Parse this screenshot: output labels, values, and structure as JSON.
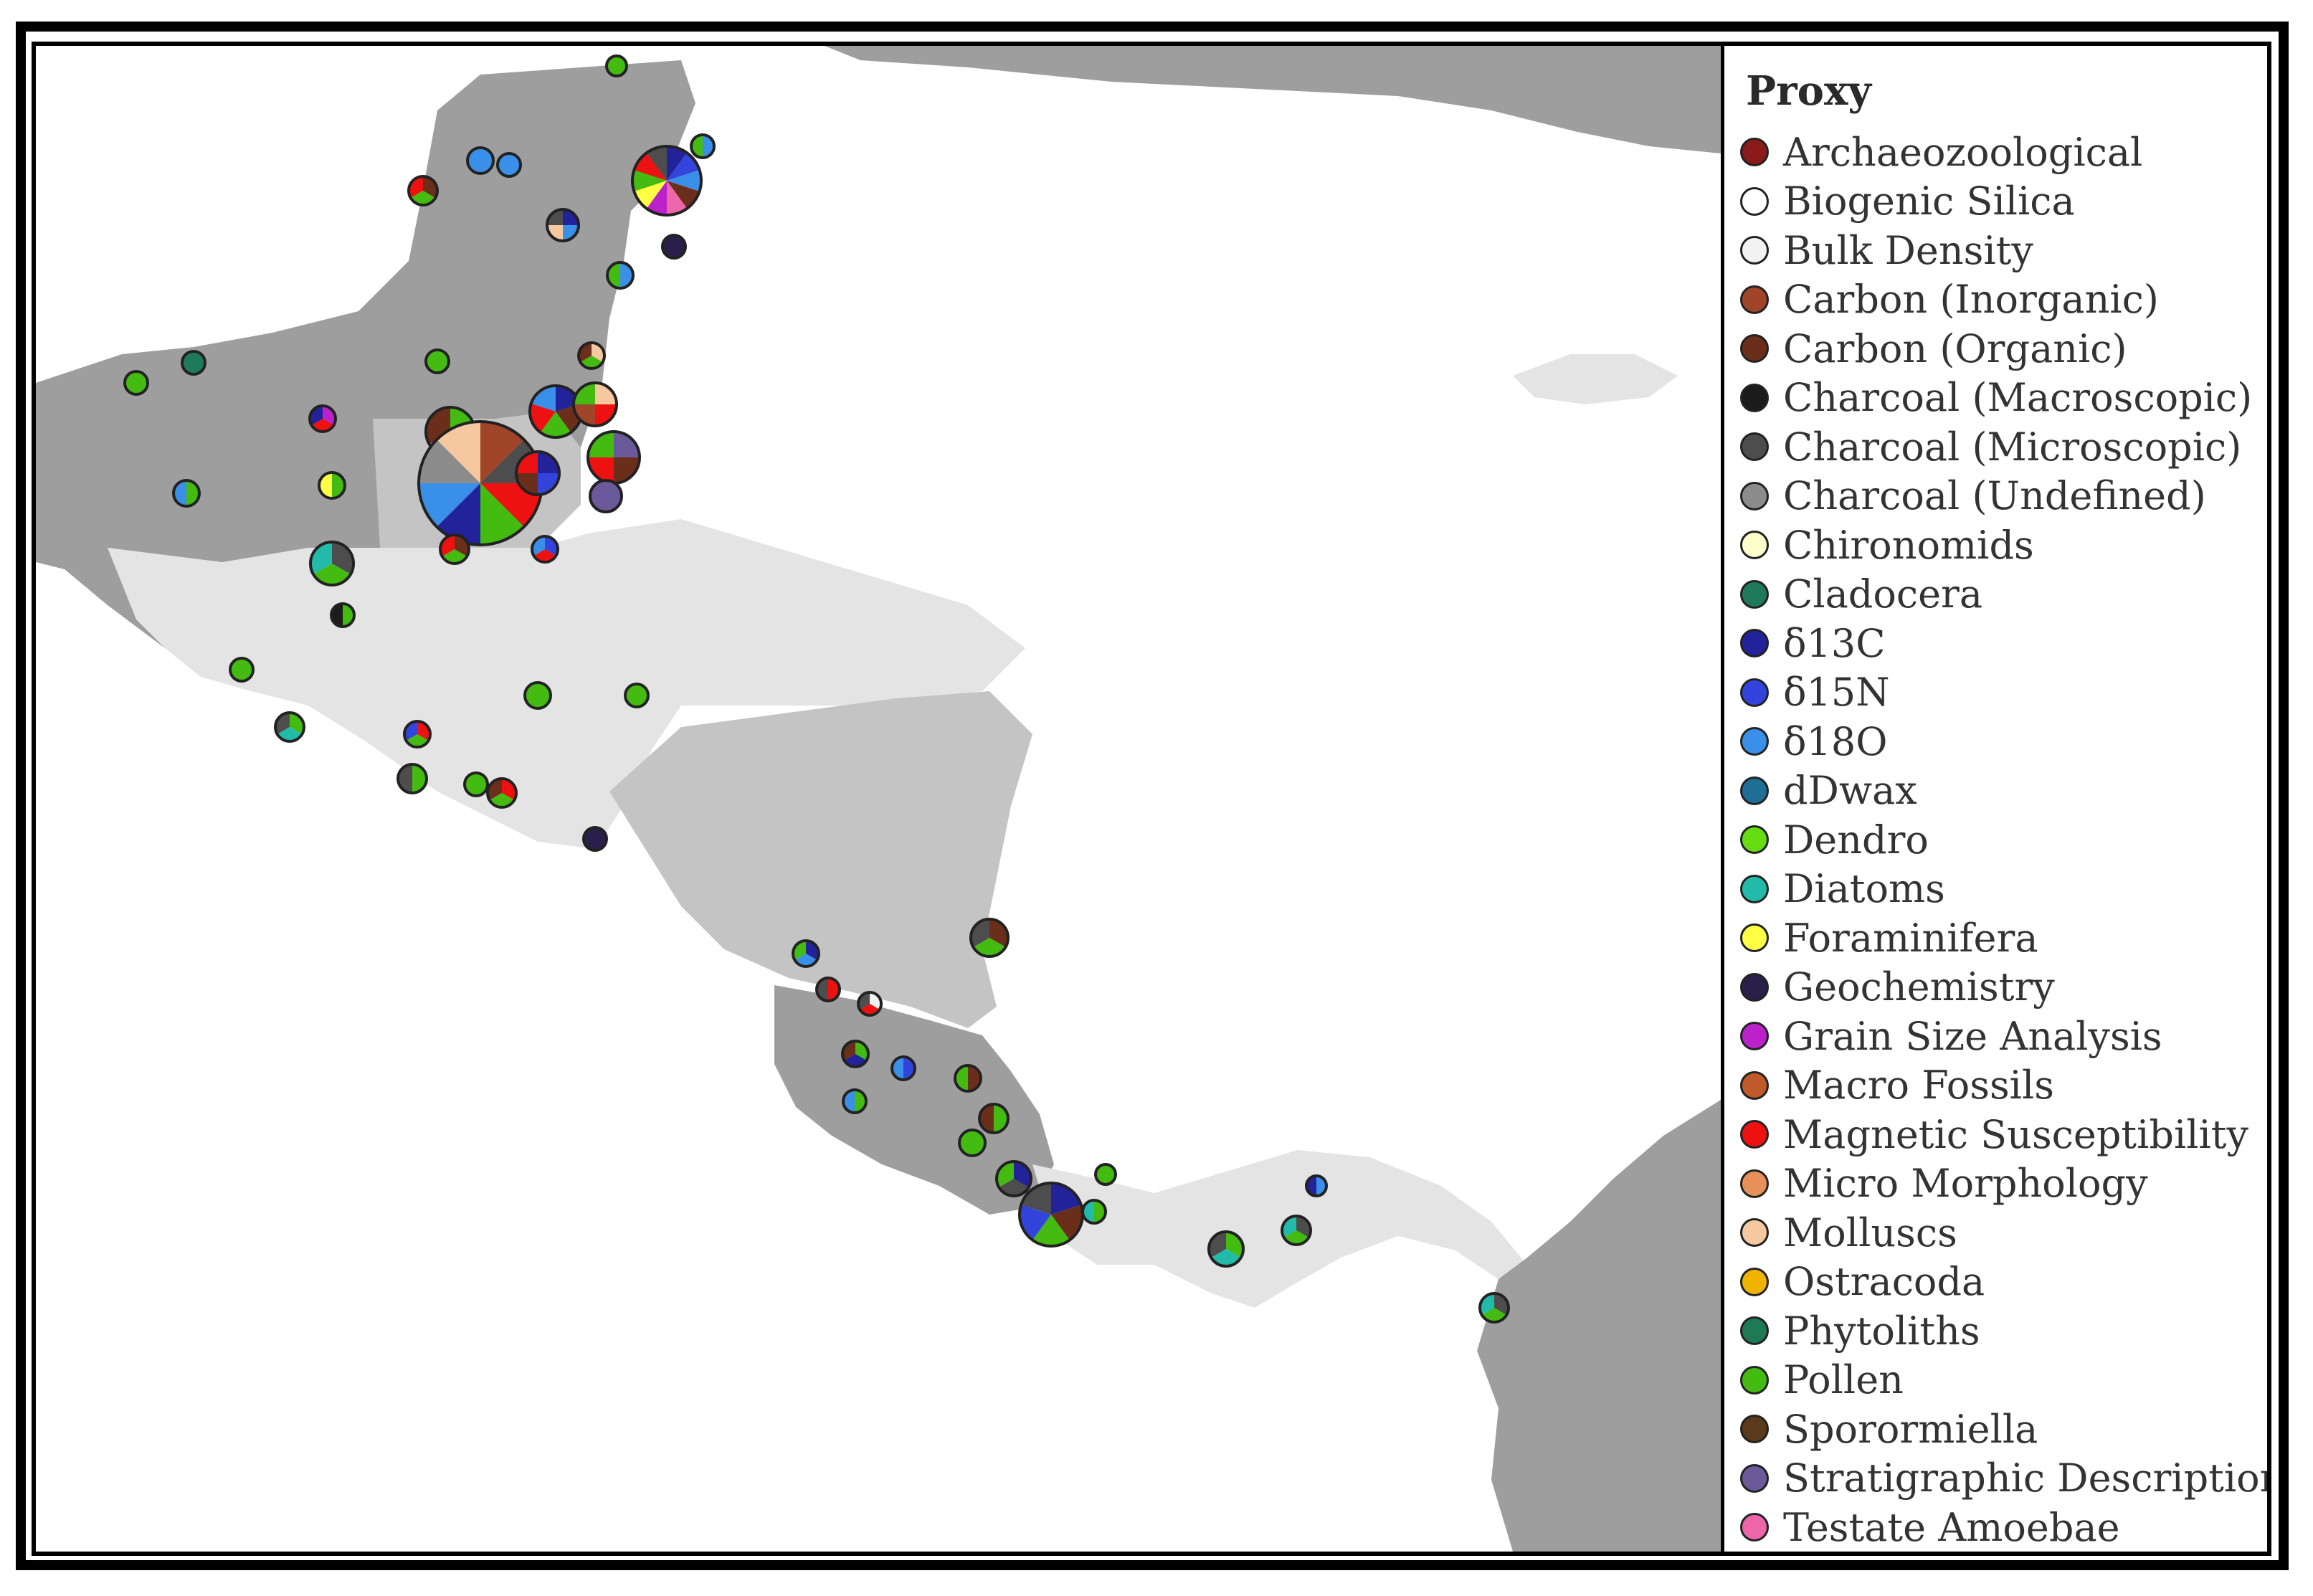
{
  "legend": {
    "title": "Proxy",
    "items": [
      {
        "label": "Archaeozoological",
        "color": "#8b1a1a"
      },
      {
        "label": "Biogenic Silica",
        "color": "#ffffff"
      },
      {
        "label": "Bulk Density",
        "color": "#f2f2f2"
      },
      {
        "label": "Carbon (Inorganic)",
        "color": "#a0442a"
      },
      {
        "label": "Carbon (Organic)",
        "color": "#6b2e1a"
      },
      {
        "label": "Charcoal (Macroscopic)",
        "color": "#1c1c1c"
      },
      {
        "label": "Charcoal (Microscopic)",
        "color": "#4d4d4d"
      },
      {
        "label": "Charcoal (Undefined)",
        "color": "#8c8c8c"
      },
      {
        "label": "Chironomids",
        "color": "#ffffcc"
      },
      {
        "label": "Cladocera",
        "color": "#1f7a5c"
      },
      {
        "label": "δ13C",
        "color": "#22229a"
      },
      {
        "label": "δ15N",
        "color": "#3344dd"
      },
      {
        "label": "δ18O",
        "color": "#3a8fe8"
      },
      {
        "label": "dDwax",
        "color": "#1e6e96"
      },
      {
        "label": "Dendro",
        "color": "#66dd11"
      },
      {
        "label": "Diatoms",
        "color": "#22bbaa"
      },
      {
        "label": "Foraminifera",
        "color": "#ffff44"
      },
      {
        "label": "Geochemistry",
        "color": "#2a1f4a"
      },
      {
        "label": "Grain Size Analysis",
        "color": "#bb22cc"
      },
      {
        "label": "Macro Fossils",
        "color": "#c05a2a"
      },
      {
        "label": "Magnetic Susceptibility",
        "color": "#ee1111"
      },
      {
        "label": "Micro Morphology",
        "color": "#e8905a"
      },
      {
        "label": "Molluscs",
        "color": "#f5c8a0"
      },
      {
        "label": "Ostracoda",
        "color": "#f0b400"
      },
      {
        "label": "Phytoliths",
        "color": "#1e7a55"
      },
      {
        "label": "Pollen",
        "color": "#44bb11"
      },
      {
        "label": "Sporormiella",
        "color": "#5a3a1a"
      },
      {
        "label": "Stratigraphic Description",
        "color": "#6a5a9a"
      },
      {
        "label": "Testate Amoebae",
        "color": "#ee66aa"
      }
    ]
  },
  "map": {
    "colors": {
      "ocean": "#ffffff",
      "land_dark": "#9e9e9e",
      "land_mid": "#c4c4c4",
      "land_light": "#e4e4e4",
      "marker_border": "#222222"
    }
  }
}
